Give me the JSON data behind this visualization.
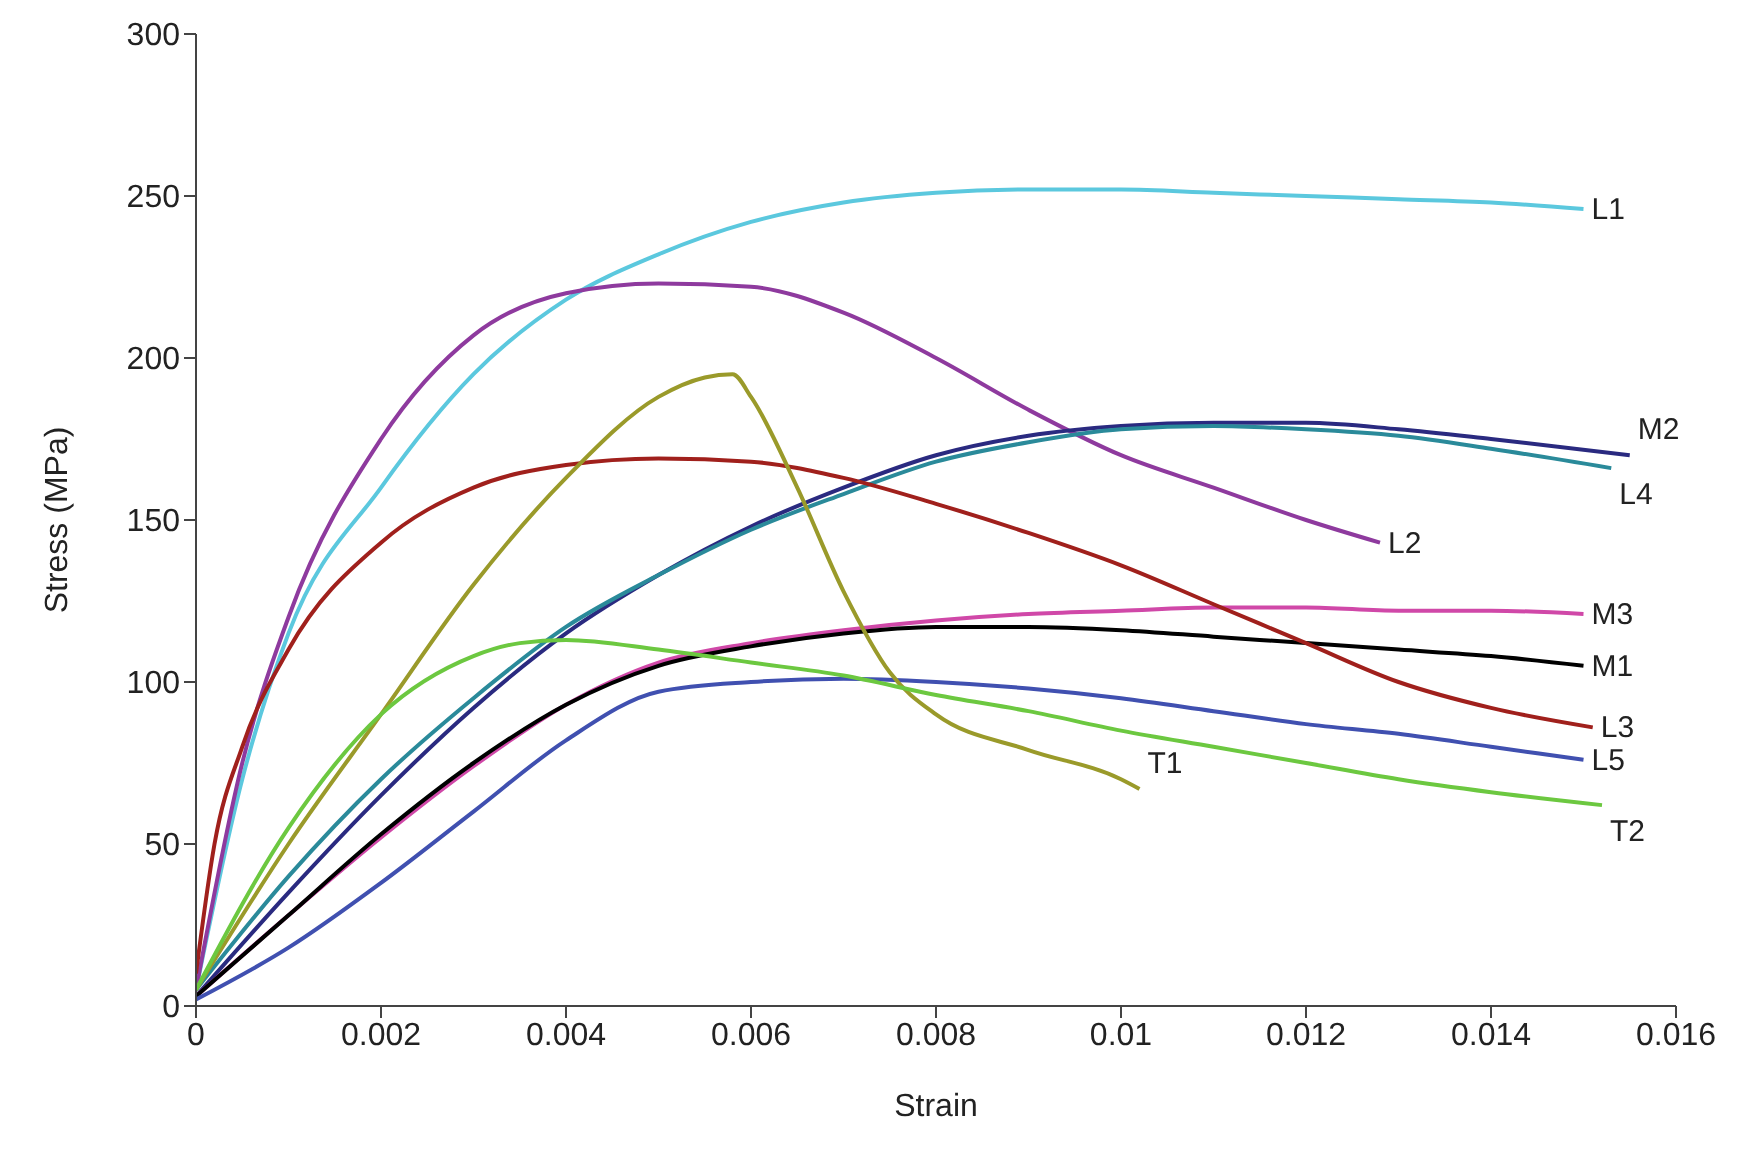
{
  "chart_data": {
    "type": "line",
    "xlabel": "Strain",
    "ylabel": "Stress (MPa)",
    "xlim": [
      0,
      0.016
    ],
    "xticks": [
      0,
      0.002,
      0.004,
      0.006,
      0.008,
      0.01,
      0.012,
      0.014,
      0.016
    ],
    "ylim": [
      0,
      300
    ],
    "yticks": [
      0,
      50,
      100,
      150,
      200,
      250,
      300
    ],
    "grid": false,
    "legend": false,
    "marker": "none",
    "series": [
      {
        "name": "L1",
        "color": "#5bc8de",
        "x": [
          0,
          0.0005,
          0.001,
          0.002,
          0.003,
          0.004,
          0.005,
          0.006,
          0.007,
          0.008,
          0.009,
          0.01,
          0.011,
          0.012,
          0.013,
          0.014,
          0.015
        ],
        "values": [
          5,
          70,
          115,
          160,
          195,
          218,
          232,
          242,
          248,
          251,
          252,
          252,
          251,
          250,
          249,
          248,
          246
        ]
      },
      {
        "name": "L2",
        "color": "#8e3a9e",
        "x": [
          0,
          0.0005,
          0.001,
          0.002,
          0.003,
          0.004,
          0.005,
          0.006,
          0.007,
          0.008,
          0.009,
          0.01,
          0.011,
          0.012,
          0.0128
        ],
        "values": [
          5,
          75,
          120,
          175,
          207,
          220,
          223,
          222,
          214,
          200,
          184,
          170,
          160,
          150,
          143
        ]
      },
      {
        "name": "M2",
        "color": "#2a2a80",
        "x": [
          0,
          0.001,
          0.002,
          0.003,
          0.004,
          0.005,
          0.006,
          0.007,
          0.008,
          0.009,
          0.01,
          0.011,
          0.012,
          0.013,
          0.014,
          0.0155
        ],
        "values": [
          3,
          35,
          65,
          92,
          115,
          133,
          148,
          160,
          170,
          176,
          179,
          180,
          180,
          178,
          175,
          170
        ]
      },
      {
        "name": "L4",
        "color": "#2a8a9a",
        "x": [
          0,
          0.001,
          0.002,
          0.003,
          0.004,
          0.005,
          0.006,
          0.007,
          0.008,
          0.009,
          0.01,
          0.011,
          0.012,
          0.013,
          0.014,
          0.0153
        ],
        "values": [
          5,
          40,
          70,
          95,
          117,
          133,
          147,
          158,
          168,
          174,
          178,
          179,
          178,
          176,
          172,
          166
        ]
      },
      {
        "name": "M3",
        "color": "#d048a8",
        "x": [
          0,
          0.001,
          0.002,
          0.003,
          0.004,
          0.005,
          0.006,
          0.007,
          0.008,
          0.009,
          0.01,
          0.011,
          0.012,
          0.013,
          0.014,
          0.015
        ],
        "values": [
          3,
          28,
          52,
          74,
          93,
          106,
          112,
          116,
          119,
          121,
          122,
          123,
          123,
          122,
          122,
          121
        ]
      },
      {
        "name": "M1",
        "color": "#000000",
        "x": [
          0,
          0.001,
          0.002,
          0.003,
          0.004,
          0.005,
          0.006,
          0.007,
          0.008,
          0.009,
          0.01,
          0.011,
          0.012,
          0.013,
          0.014,
          0.015
        ],
        "values": [
          3,
          28,
          53,
          75,
          93,
          105,
          111,
          115,
          117,
          117,
          116,
          114,
          112,
          110,
          108,
          105
        ]
      },
      {
        "name": "L3",
        "color": "#a0201c",
        "x": [
          0,
          0.0002,
          0.0005,
          0.001,
          0.002,
          0.003,
          0.004,
          0.005,
          0.006,
          0.007,
          0.008,
          0.009,
          0.01,
          0.011,
          0.012,
          0.013,
          0.014,
          0.0151
        ],
        "values": [
          10,
          50,
          80,
          110,
          143,
          160,
          167,
          169,
          168,
          163,
          155,
          146,
          136,
          124,
          112,
          100,
          92,
          86
        ]
      },
      {
        "name": "L5",
        "color": "#4050b0",
        "x": [
          0,
          0.001,
          0.002,
          0.003,
          0.004,
          0.005,
          0.006,
          0.007,
          0.008,
          0.009,
          0.01,
          0.011,
          0.012,
          0.013,
          0.014,
          0.015
        ],
        "values": [
          2,
          18,
          38,
          60,
          82,
          97,
          100,
          101,
          100,
          98,
          95,
          91,
          87,
          84,
          80,
          76
        ]
      },
      {
        "name": "T1",
        "color": "#9a9a2a",
        "x": [
          0,
          0.001,
          0.002,
          0.003,
          0.004,
          0.005,
          0.0055,
          0.0058,
          0.006,
          0.0065,
          0.007,
          0.0075,
          0.008,
          0.009,
          0.01,
          0.0102
        ],
        "values": [
          5,
          50,
          90,
          130,
          163,
          188,
          194,
          195,
          188,
          160,
          128,
          103,
          90,
          79,
          70,
          67
        ]
      },
      {
        "name": "T2",
        "color": "#6cc840",
        "x": [
          0,
          0.001,
          0.002,
          0.003,
          0.0035,
          0.004,
          0.005,
          0.006,
          0.007,
          0.008,
          0.009,
          0.01,
          0.011,
          0.012,
          0.013,
          0.014,
          0.0152
        ],
        "values": [
          5,
          55,
          90,
          108,
          112,
          113,
          110,
          106,
          102,
          96,
          91,
          85,
          80,
          75,
          70,
          66,
          62
        ]
      }
    ]
  }
}
